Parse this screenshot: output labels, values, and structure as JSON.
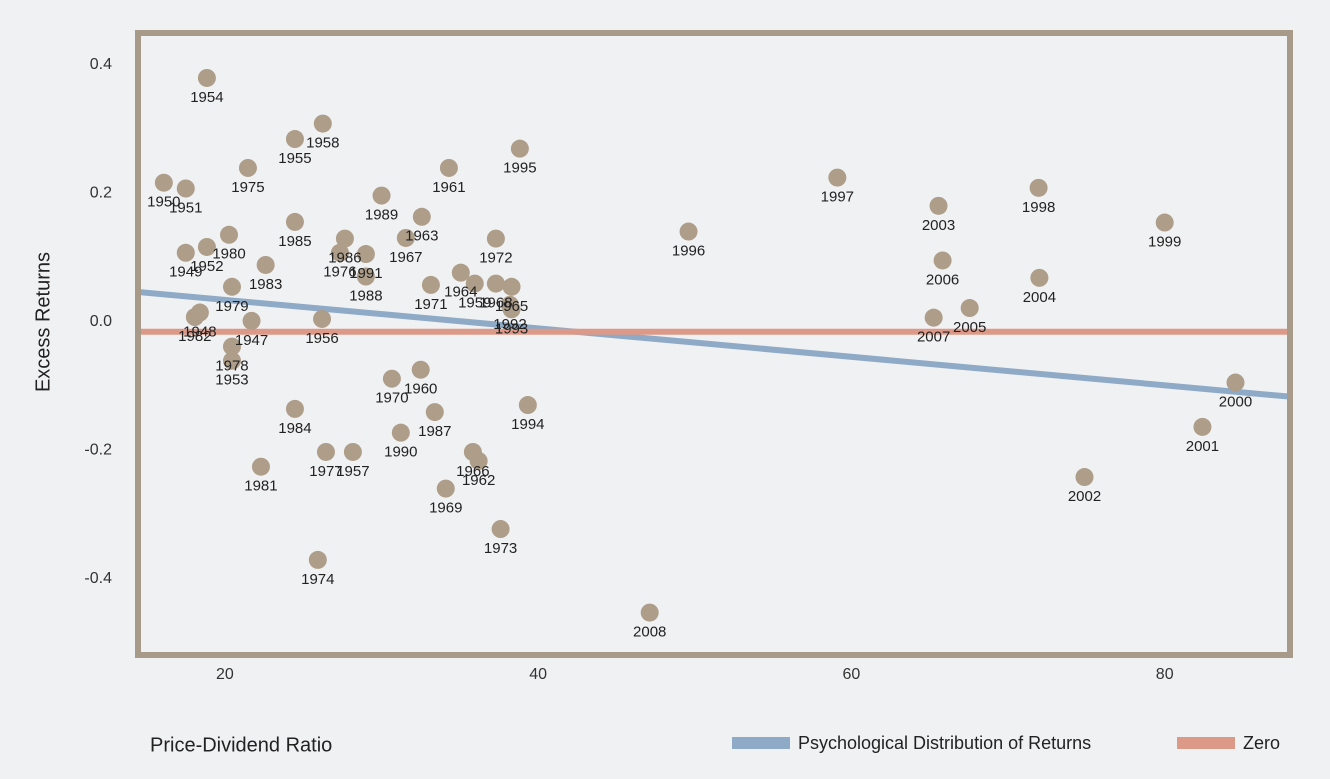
{
  "chart_data": {
    "type": "scatter",
    "x_label": "Price-Dividend Ratio",
    "y_label": "Excess Returns",
    "xlim": [
      14.45,
      88
    ],
    "ylim": [
      -0.503,
      0.465
    ],
    "xticks": [
      20,
      40,
      60,
      80
    ],
    "yticks": [
      0.4,
      0.2,
      {
        "value": 0,
        "label": "0.0"
      },
      -0.2,
      -0.4
    ],
    "point_color": "#ad9d89",
    "points": {
      "labels": [
        "1954",
        "1958",
        "1955",
        "1950",
        "1951",
        "1975",
        "1961",
        "1995",
        "1997",
        "2003",
        "1998",
        "1999",
        "1980",
        "1989",
        "1985",
        "1963",
        "1986",
        "1976",
        "1967",
        "1972",
        "1949",
        "1952",
        "1983",
        "1991",
        "1996",
        "2006",
        "2004",
        "1964",
        "1959",
        "1988",
        "1979",
        "1971",
        "1968",
        "1965",
        "1992",
        "1993",
        "1982",
        "1948",
        "1947",
        "1956",
        "2007",
        "2005",
        "1978",
        "1953",
        "1970",
        "1960",
        "1984",
        "1987",
        "1994",
        "2000",
        "1957",
        "1977",
        "1990",
        "1966",
        "1962",
        "2001",
        "1981",
        "1969",
        "2002",
        "1973",
        "1974",
        "2008"
      ],
      "x": [
        18.85,
        26.25,
        24.47,
        16.1,
        17.5,
        21.47,
        34.3,
        38.83,
        59.1,
        65.56,
        71.95,
        80.0,
        20.26,
        30.0,
        24.47,
        32.57,
        27.66,
        27.34,
        31.55,
        37.3,
        17.5,
        18.85,
        22.6,
        29.0,
        49.6,
        65.82,
        72.0,
        35.06,
        35.95,
        29.0,
        20.45,
        33.15,
        37.3,
        38.3,
        38.2,
        38.3,
        18.08,
        18.4,
        21.7,
        26.2,
        65.25,
        67.55,
        20.45,
        20.45,
        30.66,
        32.5,
        24.47,
        33.4,
        39.34,
        84.52,
        28.17,
        26.45,
        31.23,
        35.83,
        36.2,
        82.41,
        22.3,
        34.1,
        74.88,
        37.6,
        25.93,
        47.12
      ],
      "y": [
        0.395,
        0.324,
        0.3,
        0.232,
        0.223,
        0.255,
        0.255,
        0.285,
        0.24,
        0.196,
        0.224,
        0.17,
        0.151,
        0.212,
        0.171,
        0.179,
        0.145,
        0.123,
        0.146,
        0.145,
        0.123,
        0.132,
        0.104,
        0.121,
        0.156,
        0.111,
        0.084,
        0.092,
        0.075,
        0.086,
        0.07,
        0.073,
        0.075,
        0.07,
        0.042,
        0.035,
        0.023,
        0.03,
        0.017,
        0.02,
        0.022,
        0.037,
        -0.023,
        -0.045,
        -0.073,
        -0.059,
        -0.12,
        -0.125,
        -0.114,
        -0.079,
        -0.187,
        -0.187,
        -0.157,
        -0.187,
        -0.201,
        -0.148,
        -0.21,
        -0.244,
        -0.226,
        -0.307,
        -0.355,
        -0.437
      ]
    },
    "series": [
      {
        "name": "Psychological Distribution of Returns",
        "color": "#8eaac6",
        "x": [
          14.45,
          88
        ],
        "values": [
          0.062,
          -0.101
        ]
      },
      {
        "name": "Zero",
        "color": "#dd9988",
        "x": [
          14.45,
          88
        ],
        "values": [
          0,
          0
        ]
      }
    ]
  }
}
